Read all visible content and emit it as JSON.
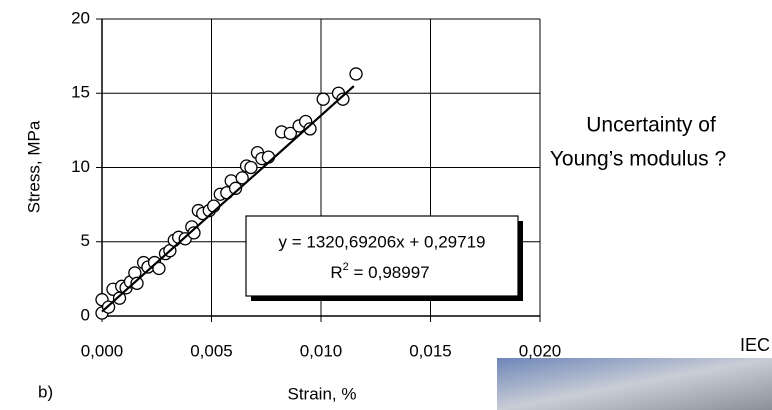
{
  "chart_data": {
    "type": "scatter",
    "xlabel": "Strain, %",
    "ylabel": "Stress, MPa",
    "x": [
      0.0,
      0.0,
      0.0003,
      0.0005,
      0.0008,
      0.0009,
      0.0011,
      0.0013,
      0.0015,
      0.0016,
      0.0019,
      0.0021,
      0.0024,
      0.0026,
      0.0029,
      0.0031,
      0.0033,
      0.0035,
      0.0038,
      0.0041,
      0.0042,
      0.0044,
      0.0046,
      0.0049,
      0.0051,
      0.0054,
      0.0057,
      0.0059,
      0.0061,
      0.0064,
      0.0066,
      0.0068,
      0.0071,
      0.0073,
      0.0076,
      0.0082,
      0.0086,
      0.009,
      0.0093,
      0.0095,
      0.0101,
      0.0108,
      0.011,
      0.0116
    ],
    "values": [
      0.2,
      1.1,
      0.6,
      1.8,
      1.2,
      2.0,
      1.9,
      2.3,
      2.9,
      2.2,
      3.6,
      3.3,
      3.6,
      3.2,
      4.2,
      4.4,
      5.1,
      5.3,
      5.2,
      6.0,
      5.6,
      7.1,
      6.9,
      7.1,
      7.4,
      8.2,
      8.3,
      9.1,
      8.6,
      9.3,
      10.1,
      10.0,
      11.0,
      10.6,
      10.7,
      12.4,
      12.3,
      12.8,
      13.1,
      12.6,
      14.6,
      15.0,
      14.6,
      16.3
    ],
    "color": "#ffffff",
    "xlim": [
      0,
      0.02
    ],
    "xticks": [
      {
        "value": 0,
        "label": "0,000"
      },
      {
        "value": 0.005,
        "label": "0,005"
      },
      {
        "value": 0.01,
        "label": "0,010"
      },
      {
        "value": 0.015,
        "label": "0,015"
      },
      {
        "value": 0.02,
        "label": "0,020"
      }
    ],
    "ylim": [
      0,
      20
    ],
    "yticks": [
      0,
      5,
      10,
      15,
      20
    ],
    "grid": true,
    "trendline": {
      "slope": 1320.69206,
      "intercept": 0.29719,
      "xrange": [
        0,
        0.0115
      ],
      "equation": "y = 1320,69206x + 0,29719",
      "r_squared": {
        "symbol": "R",
        "superscript": "2",
        "value_text": " = 0,98997"
      }
    },
    "annotations": [
      "Uncertainty of",
      "Young’s modulus ?",
      "b)",
      "IEC"
    ]
  }
}
